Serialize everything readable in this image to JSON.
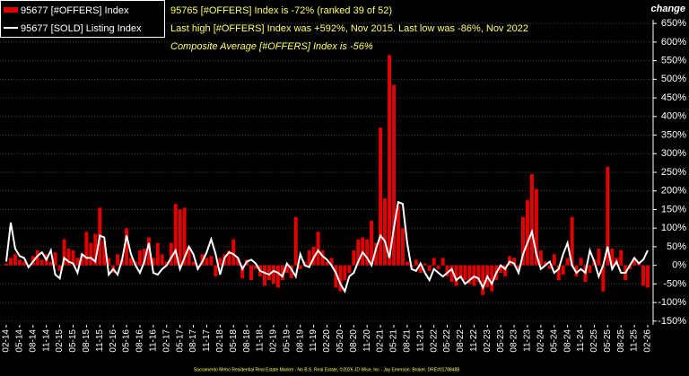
{
  "chart_data": {
    "type": "bar-line",
    "legend": [
      "95677 [#OFFERS] Index",
      "95677 [SOLD] Listing Index"
    ],
    "annotations": [
      "95765 [#OFFERS] Index is -72% (ranked 39 of 52)",
      "Last high [#OFFERS] Index was +592%, Nov 2015. Last low was -86%, Nov 2022",
      "Composite Average [#OFFERS] Index is -56%"
    ],
    "y_axis_title": "change",
    "footer": "Sacramento Metro Residential Real Estate Market - No B.S. Real Estate, ©2026 JD Wise, Inc - Jay Emerson; Broker, DRE#01788488",
    "categories": [
      "02-14",
      null,
      null,
      "05-14",
      null,
      null,
      "08-14",
      null,
      null,
      "11-14",
      null,
      null,
      "02-15",
      null,
      null,
      "05-15",
      null,
      null,
      "08-15",
      null,
      null,
      "11-15",
      null,
      null,
      "02-16",
      null,
      null,
      "05-16",
      null,
      null,
      "08-16",
      null,
      null,
      "11-16",
      null,
      null,
      "02-17",
      null,
      null,
      "05-17",
      null,
      null,
      "08-17",
      null,
      null,
      "11-17",
      null,
      null,
      "02-18",
      null,
      null,
      "05-18",
      null,
      null,
      "08-18",
      null,
      null,
      "11-18",
      null,
      null,
      "02-19",
      null,
      null,
      "05-19",
      null,
      null,
      "08-19",
      null,
      null,
      "11-19",
      null,
      null,
      "02-20",
      null,
      null,
      "05-20",
      null,
      null,
      "08-20",
      null,
      null,
      "11-20",
      null,
      null,
      "02-21",
      null,
      null,
      "05-21",
      null,
      null,
      "08-21",
      null,
      null,
      "11-21",
      null,
      null,
      "02-22",
      null,
      null,
      "05-22",
      null,
      null,
      "08-22",
      null,
      null,
      "11-22",
      null,
      null,
      "02-23",
      null,
      null,
      "05-23",
      null,
      null,
      "08-23",
      null,
      null,
      "11-23",
      null,
      null,
      "02-24",
      null,
      null,
      "05-24",
      null,
      null,
      "08-24",
      null,
      null,
      "11-24",
      null,
      null,
      "02-25",
      null,
      null,
      "05-25",
      null,
      null,
      "08-25",
      null,
      null,
      "11-25",
      null,
      null,
      "02-26"
    ],
    "series": [
      {
        "name": "95677 [#OFFERS] Index",
        "type": "bar",
        "color": "#e00000",
        "values": [
          5,
          20,
          30,
          15,
          10,
          -5,
          25,
          40,
          15,
          30,
          10,
          35,
          -15,
          70,
          45,
          40,
          20,
          30,
          90,
          60,
          85,
          155,
          65,
          20,
          -20,
          30,
          15,
          100,
          20,
          10,
          40,
          45,
          75,
          20,
          60,
          30,
          10,
          60,
          165,
          150,
          155,
          50,
          10,
          -5,
          30,
          20,
          25,
          -30,
          20,
          30,
          40,
          70,
          20,
          -35,
          15,
          -40,
          -10,
          -30,
          -55,
          -40,
          -50,
          -60,
          -40,
          -20,
          -35,
          130,
          -10,
          10,
          40,
          50,
          90,
          40,
          10,
          20,
          -60,
          -70,
          -40,
          -20,
          40,
          70,
          75,
          70,
          120,
          60,
          370,
          180,
          565,
          485,
          160,
          100,
          10,
          -5,
          15,
          -20,
          5,
          -15,
          20,
          -10,
          20,
          -30,
          -45,
          -55,
          -35,
          -40,
          -50,
          -55,
          -45,
          -80,
          -60,
          -70,
          -40,
          -20,
          -30,
          25,
          20,
          -10,
          130,
          175,
          245,
          205,
          40,
          10,
          -10,
          30,
          -40,
          -25,
          20,
          130,
          -30,
          20,
          -45,
          -20,
          15,
          45,
          -70,
          265,
          45,
          20,
          40,
          -40,
          -10,
          20,
          10,
          -55,
          -60
        ]
      },
      {
        "name": "95677 [SOLD] Listing Index",
        "type": "line",
        "color": "#ffffff",
        "values": [
          10,
          115,
          45,
          25,
          20,
          -5,
          10,
          25,
          35,
          15,
          40,
          -25,
          -35,
          20,
          10,
          5,
          -20,
          30,
          20,
          20,
          10,
          80,
          75,
          -25,
          -10,
          -25,
          15,
          80,
          30,
          0,
          -20,
          10,
          60,
          -20,
          -25,
          -10,
          0,
          20,
          40,
          -10,
          20,
          50,
          30,
          -10,
          10,
          35,
          70,
          30,
          -25,
          20,
          35,
          30,
          20,
          -10,
          10,
          15,
          5,
          -15,
          -20,
          -25,
          -15,
          -20,
          -30,
          5,
          -10,
          -30,
          30,
          0,
          -5,
          20,
          40,
          25,
          15,
          0,
          -20,
          -50,
          -70,
          -30,
          -20,
          10,
          35,
          20,
          0,
          45,
          80,
          65,
          20,
          100,
          170,
          165,
          60,
          -10,
          -15,
          5,
          -20,
          -40,
          -10,
          -20,
          -30,
          -20,
          -10,
          -40,
          -30,
          -50,
          -40,
          -30,
          -35,
          -60,
          -30,
          -50,
          -20,
          0,
          -10,
          10,
          5,
          -20,
          30,
          60,
          90,
          30,
          -10,
          0,
          10,
          -20,
          -10,
          30,
          60,
          0,
          -20,
          -10,
          -20,
          40,
          10,
          -30,
          0,
          50,
          -10,
          10,
          -20,
          -20,
          0,
          20,
          5,
          15,
          40
        ]
      }
    ],
    "ylim": [
      -160,
      660
    ],
    "yticks": [
      {
        "value": 650,
        "label": "650%"
      },
      {
        "value": 600,
        "label": "600%"
      },
      {
        "value": 550,
        "label": "550%"
      },
      {
        "value": 500,
        "label": "500%"
      },
      {
        "value": 450,
        "label": "450%"
      },
      {
        "value": 400,
        "label": "400%"
      },
      {
        "value": 350,
        "label": "350%"
      },
      {
        "value": 300,
        "label": "300%"
      },
      {
        "value": 250,
        "label": "250%"
      },
      {
        "value": 200,
        "label": "200%"
      },
      {
        "value": 150,
        "label": "150%"
      },
      {
        "value": 100,
        "label": "100%"
      },
      {
        "value": 50,
        "label": "50%"
      },
      {
        "value": 0,
        "label": "0%"
      },
      {
        "value": -50,
        "label": "-50%"
      },
      {
        "value": -100,
        "label": "-100%"
      },
      {
        "value": -150,
        "label": "-150%"
      }
    ],
    "grid": true
  }
}
